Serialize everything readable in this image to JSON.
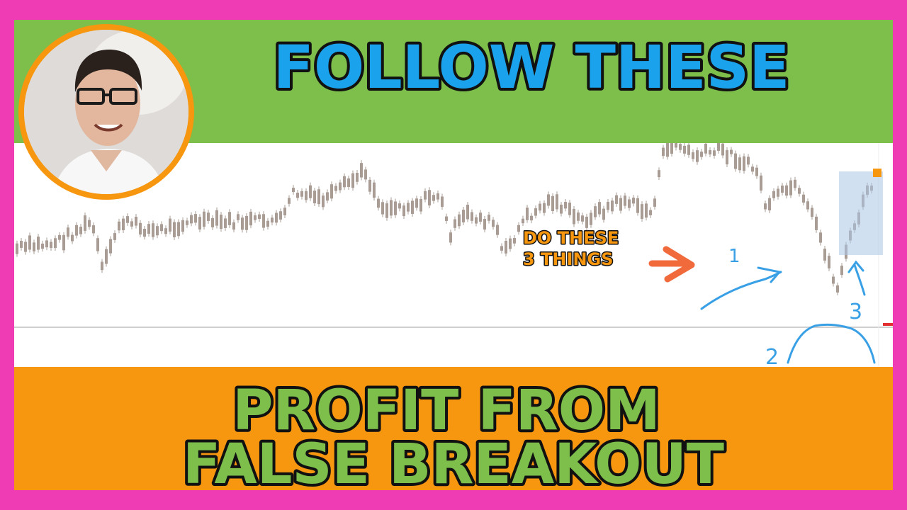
{
  "headline": {
    "top": "FOLLOW THESE",
    "bottom_line1": "PROFIT FROM",
    "bottom_line2": "FALSE BREAKOUT"
  },
  "callout": {
    "line1": "DO THESE",
    "line2": "3 THINGS"
  },
  "annotations": {
    "mark1": "1",
    "mark2": "2",
    "mark3": "3"
  },
  "colors": {
    "frame": "#f03cb4",
    "top_band": "#7dbf4a",
    "bottom_band": "#f7960f",
    "top_text": "#1aa3ec",
    "bottom_text": "#7dbf4a",
    "callout_text": "#f7960f",
    "arrow": "#f06a3c",
    "pen": "#3aa0e6",
    "candles": "#a89c94"
  },
  "icons": {
    "avatar": "person-portrait",
    "pointer": "right-arrow-icon"
  }
}
